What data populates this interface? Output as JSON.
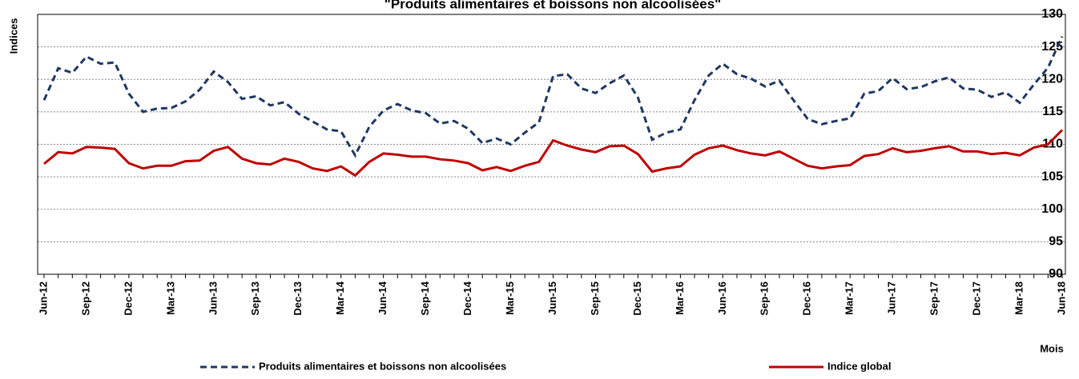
{
  "chart_data": {
    "type": "line",
    "title": "\"Produits alimentaires et boissons  non alcoolisées\"",
    "y_label": "Indices",
    "x_label": "Mois",
    "categories": [
      "Jun-12",
      null,
      null,
      "Sep-12",
      null,
      null,
      "Dec-12",
      null,
      null,
      "Mar-13",
      null,
      null,
      "Jun-13",
      null,
      null,
      "Sep-13",
      null,
      null,
      "Dec-13",
      null,
      null,
      "Mar-14",
      null,
      null,
      "Jun-14",
      null,
      null,
      "Sep-14",
      null,
      null,
      "Dec-14",
      null,
      null,
      "Mar-15",
      null,
      null,
      "Jun-15",
      null,
      null,
      "Sep-15",
      null,
      null,
      "Dec-15",
      null,
      null,
      "Mar-16",
      null,
      null,
      "Jun-16",
      null,
      null,
      "Sep-16",
      null,
      null,
      "Dec-16",
      null,
      null,
      "Mar-17",
      null,
      null,
      "Jun-17",
      null,
      null,
      "Sep-17",
      null,
      null,
      "Dec-17",
      null,
      null,
      "Mar-18",
      null,
      null,
      "Jun-18"
    ],
    "series": [
      {
        "name": "Produits alimentaires et boissons non alcoolisées",
        "color": "#1f3864",
        "dashed": true,
        "values": [
          116.8,
          121.7,
          121.0,
          123.5,
          122.4,
          122.6,
          117.8,
          115.0,
          115.5,
          115.6,
          116.6,
          118.4,
          121.2,
          119.6,
          117.0,
          117.4,
          116.0,
          116.5,
          114.7,
          113.5,
          112.3,
          112.0,
          108.3,
          112.7,
          115.2,
          116.2,
          115.2,
          114.8,
          113.2,
          113.6,
          112.4,
          110.2,
          110.9,
          110.0,
          111.8,
          113.4,
          120.5,
          120.8,
          118.6,
          117.9,
          119.4,
          120.6,
          117.2,
          110.7,
          111.8,
          112.3,
          116.8,
          120.6,
          122.4,
          120.8,
          120.1,
          118.9,
          119.8,
          116.8,
          113.9,
          113.1,
          113.6,
          114.0,
          117.8,
          118.2,
          120.2,
          118.5,
          118.8,
          119.7,
          120.3,
          118.6,
          118.4,
          117.3,
          118.0,
          116.4,
          119.2,
          121.8,
          126.6
        ]
      },
      {
        "name": "Indice global",
        "color": "#c00000",
        "dashed": false,
        "values": [
          107.0,
          108.8,
          108.6,
          109.6,
          109.5,
          109.3,
          107.1,
          106.3,
          106.7,
          106.7,
          107.4,
          107.5,
          109.0,
          109.6,
          107.8,
          107.1,
          106.9,
          107.8,
          107.3,
          106.3,
          105.9,
          106.6,
          105.2,
          107.3,
          108.6,
          108.4,
          108.1,
          108.1,
          107.7,
          107.5,
          107.1,
          106.0,
          106.5,
          105.9,
          106.7,
          107.3,
          110.6,
          109.8,
          109.2,
          108.8,
          109.7,
          109.8,
          108.5,
          105.8,
          106.3,
          106.6,
          108.4,
          109.4,
          109.8,
          109.1,
          108.6,
          108.3,
          108.9,
          107.8,
          106.7,
          106.3,
          106.6,
          106.8,
          108.2,
          108.5,
          109.4,
          108.8,
          109.0,
          109.4,
          109.7,
          108.9,
          108.9,
          108.5,
          108.7,
          108.3,
          109.5,
          110.0,
          112.2
        ]
      }
    ],
    "ylim": [
      90,
      130
    ],
    "yticks": [
      90,
      95,
      100,
      105,
      110,
      115,
      120,
      125,
      130
    ],
    "grid": true,
    "legend": "bottom"
  }
}
